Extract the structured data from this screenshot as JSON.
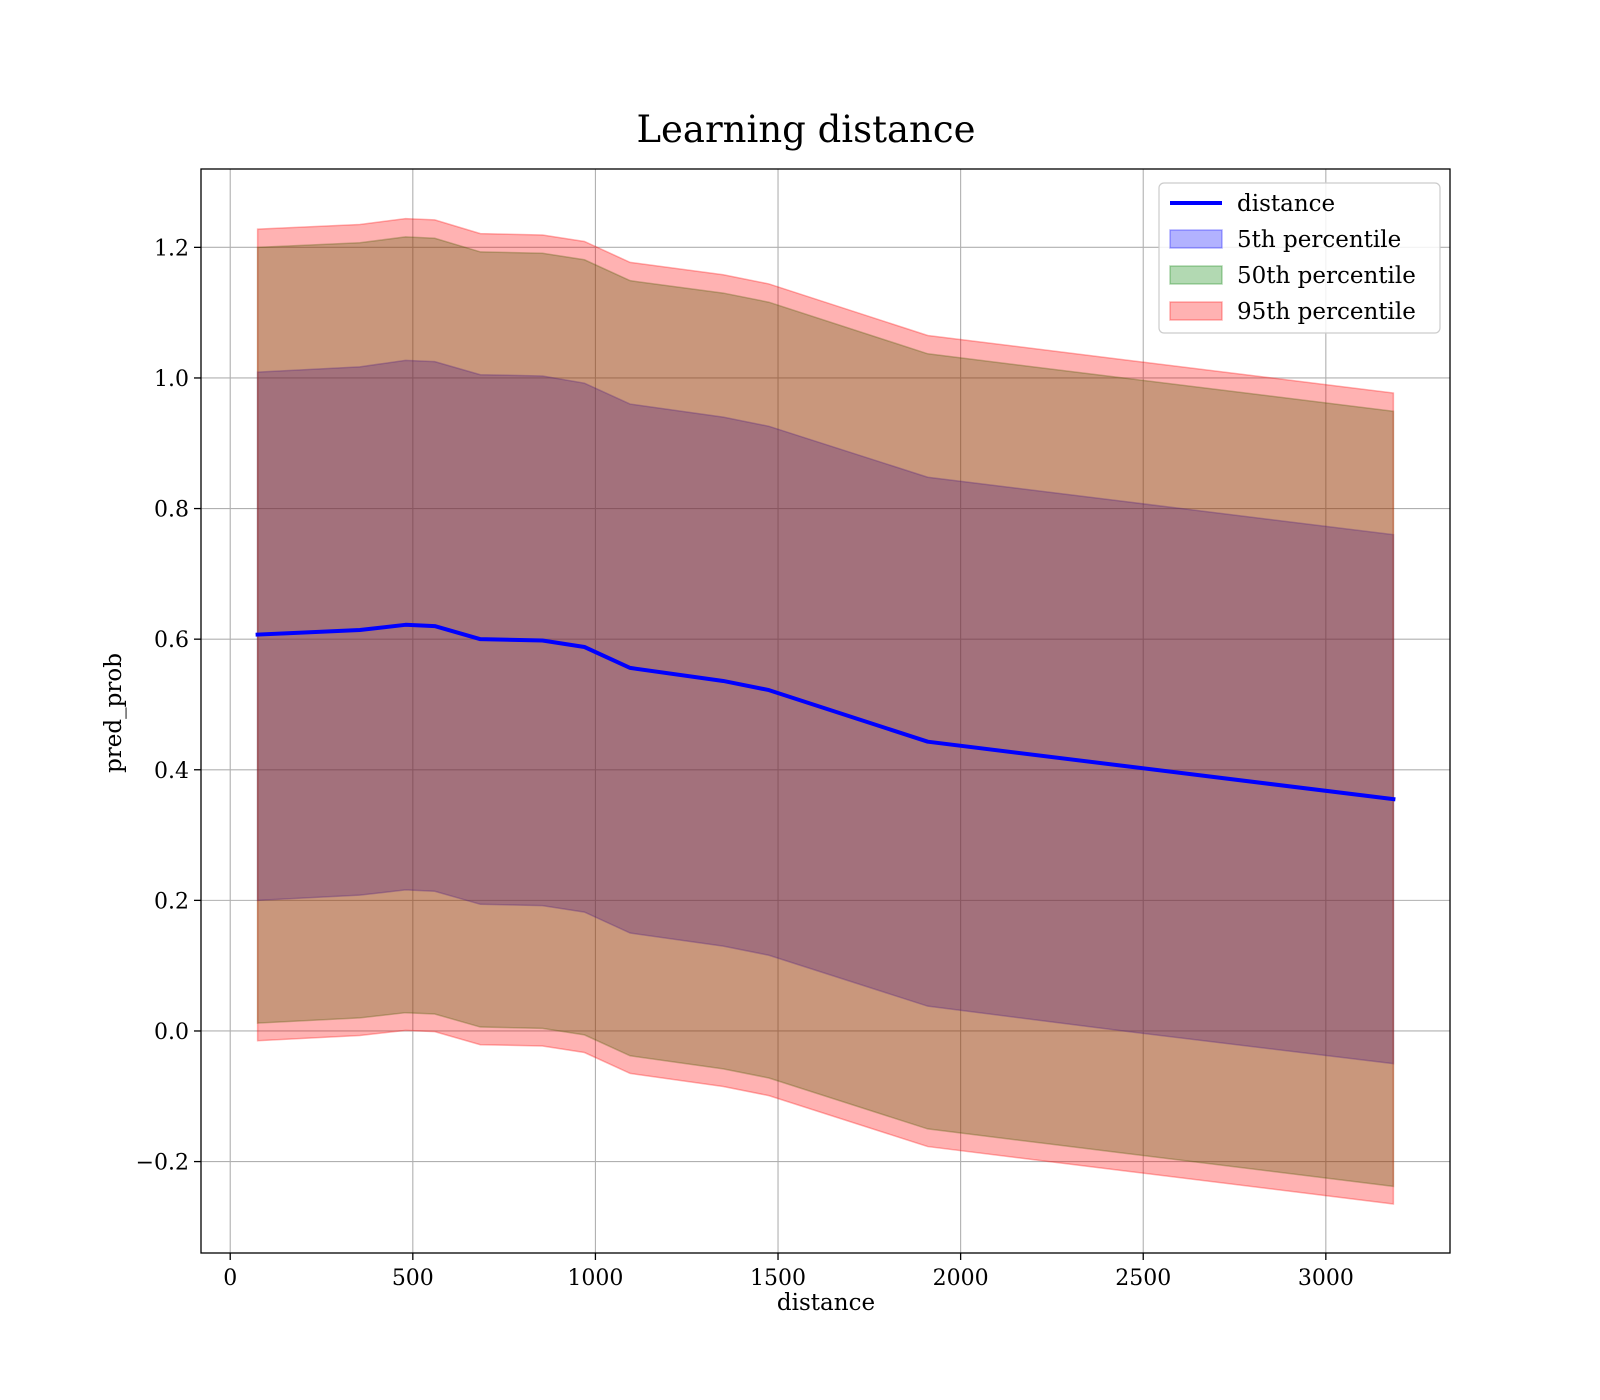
{
  "chart_data": {
    "type": "line",
    "title": "Learning distance",
    "xlabel": "distance",
    "ylabel": "pred_prob",
    "xlim": [
      -80,
      3340
    ],
    "ylim": [
      -0.34,
      1.32
    ],
    "xticks": [
      0,
      500,
      1000,
      1500,
      2000,
      2500,
      3000
    ],
    "xtick_labels": [
      "0",
      "500",
      "1000",
      "1500",
      "2000",
      "2500",
      "3000"
    ],
    "yticks": [
      -0.2,
      0.0,
      0.2,
      0.4,
      0.6,
      0.8,
      1.0,
      1.2
    ],
    "ytick_labels": [
      "−0.2",
      "0.0",
      "0.2",
      "0.4",
      "0.6",
      "0.8",
      "1.0",
      "1.2"
    ],
    "grid": true,
    "legend_position": "top-right",
    "x": [
      75,
      355,
      480,
      560,
      685,
      855,
      970,
      1095,
      1350,
      1475,
      1910,
      2460,
      3185
    ],
    "series": [
      {
        "name": "distance",
        "kind": "line",
        "color": "#0000ff",
        "values": [
          0.607,
          0.614,
          0.622,
          0.62,
          0.6,
          0.598,
          0.588,
          0.556,
          0.536,
          0.522,
          0.443,
          0.405,
          0.355
        ]
      },
      {
        "name": "5th percentile",
        "kind": "band",
        "color": "#0000ff",
        "opacity": 0.3,
        "lower": [
          0.2,
          0.208,
          0.216,
          0.214,
          0.194,
          0.192,
          0.182,
          0.15,
          0.13,
          0.116,
          0.038,
          -0.001,
          -0.05
        ],
        "upper": [
          1.009,
          1.017,
          1.027,
          1.025,
          1.005,
          1.003,
          0.992,
          0.96,
          0.94,
          0.926,
          0.848,
          0.81,
          0.76
        ]
      },
      {
        "name": "50th percentile",
        "kind": "band",
        "color": "#008000",
        "opacity": 0.3,
        "lower": [
          0.012,
          0.02,
          0.028,
          0.026,
          0.006,
          0.004,
          -0.006,
          -0.038,
          -0.058,
          -0.072,
          -0.15,
          -0.188,
          -0.238
        ],
        "upper": [
          1.2,
          1.207,
          1.216,
          1.214,
          1.193,
          1.191,
          1.181,
          1.149,
          1.13,
          1.116,
          1.037,
          0.999,
          0.949
        ]
      },
      {
        "name": "95th percentile",
        "kind": "band",
        "color": "#ff0000",
        "opacity": 0.3,
        "lower": [
          -0.015,
          -0.007,
          0.001,
          -0.001,
          -0.021,
          -0.023,
          -0.033,
          -0.065,
          -0.085,
          -0.099,
          -0.177,
          -0.215,
          -0.265
        ],
        "upper": [
          1.228,
          1.235,
          1.244,
          1.242,
          1.221,
          1.219,
          1.209,
          1.177,
          1.158,
          1.144,
          1.065,
          1.027,
          0.977
        ]
      }
    ]
  }
}
